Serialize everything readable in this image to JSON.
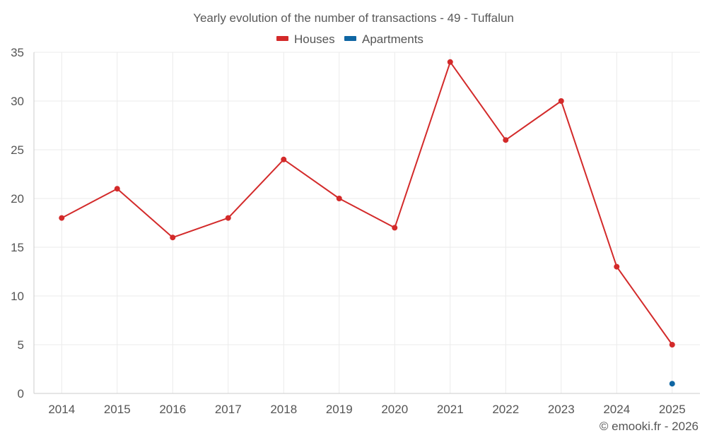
{
  "chart_data": {
    "type": "line",
    "title": "Yearly evolution of the number of transactions - 49 - Tuffalun",
    "categories": [
      "2014",
      "2015",
      "2016",
      "2017",
      "2018",
      "2019",
      "2020",
      "2021",
      "2022",
      "2023",
      "2024",
      "2025"
    ],
    "series": [
      {
        "name": "Houses",
        "color": "#d32a2a",
        "values": [
          18,
          21,
          16,
          18,
          24,
          20,
          17,
          34,
          26,
          30,
          13,
          5
        ]
      },
      {
        "name": "Apartments",
        "color": "#0f66a3",
        "values": [
          null,
          null,
          null,
          null,
          null,
          null,
          null,
          null,
          null,
          null,
          null,
          1
        ]
      }
    ],
    "ylim": [
      0,
      35
    ],
    "yticks": [
      0,
      5,
      10,
      15,
      20,
      25,
      30,
      35
    ],
    "grid": true,
    "legend": "top-center",
    "xlabel": "",
    "ylabel": ""
  },
  "credit": "© emooki.fr - 2026"
}
